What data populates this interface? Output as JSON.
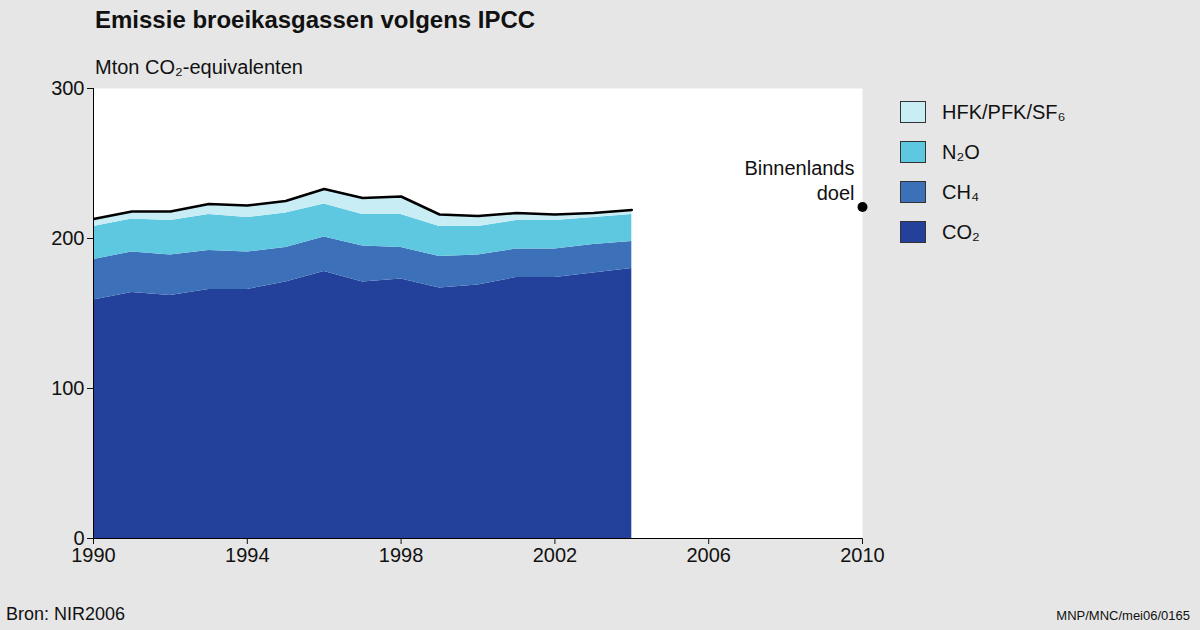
{
  "chart_data": {
    "type": "area",
    "stacked": true,
    "title": "Emissie broeikasgassen volgens IPCC",
    "subtitle": "Mton CO₂-equivalenten",
    "source": "Bron: NIR2006",
    "credit": "MNP/MNC/mei06/0165",
    "x": [
      1990,
      1991,
      1992,
      1993,
      1994,
      1995,
      1996,
      1997,
      1998,
      1999,
      2000,
      2001,
      2002,
      2003,
      2004
    ],
    "series": [
      {
        "name": "CO₂",
        "color": "#23419a",
        "values": [
          159,
          164,
          162,
          166,
          166,
          171,
          178,
          171,
          173,
          167,
          169,
          174,
          174,
          177,
          180
        ]
      },
      {
        "name": "CH₄",
        "color": "#3c70b8",
        "values": [
          27,
          27,
          27,
          26,
          25,
          23,
          23,
          24,
          21,
          21,
          20,
          19,
          19,
          19,
          18
        ]
      },
      {
        "name": "N₂O",
        "color": "#5ec8e0",
        "values": [
          22,
          22,
          23,
          24,
          23,
          23,
          22,
          21,
          22,
          20,
          19,
          19,
          19,
          18,
          18
        ]
      },
      {
        "name": "HFK/PFK/SF₆",
        "color": "#c9edf5",
        "values": [
          5,
          5,
          6,
          7,
          8,
          8,
          10,
          11,
          12,
          8,
          7,
          5,
          4,
          3,
          3
        ]
      }
    ],
    "annotations": [
      {
        "text": "Binnenlands doel",
        "x": 2010,
        "y": 221
      }
    ],
    "xlim": [
      1990,
      2010
    ],
    "xticks": [
      1990,
      1994,
      1998,
      2002,
      2006,
      2010
    ],
    "ylim": [
      0,
      300
    ],
    "yticks": [
      0,
      100,
      200,
      300
    ],
    "grid": false,
    "legend": "right"
  }
}
